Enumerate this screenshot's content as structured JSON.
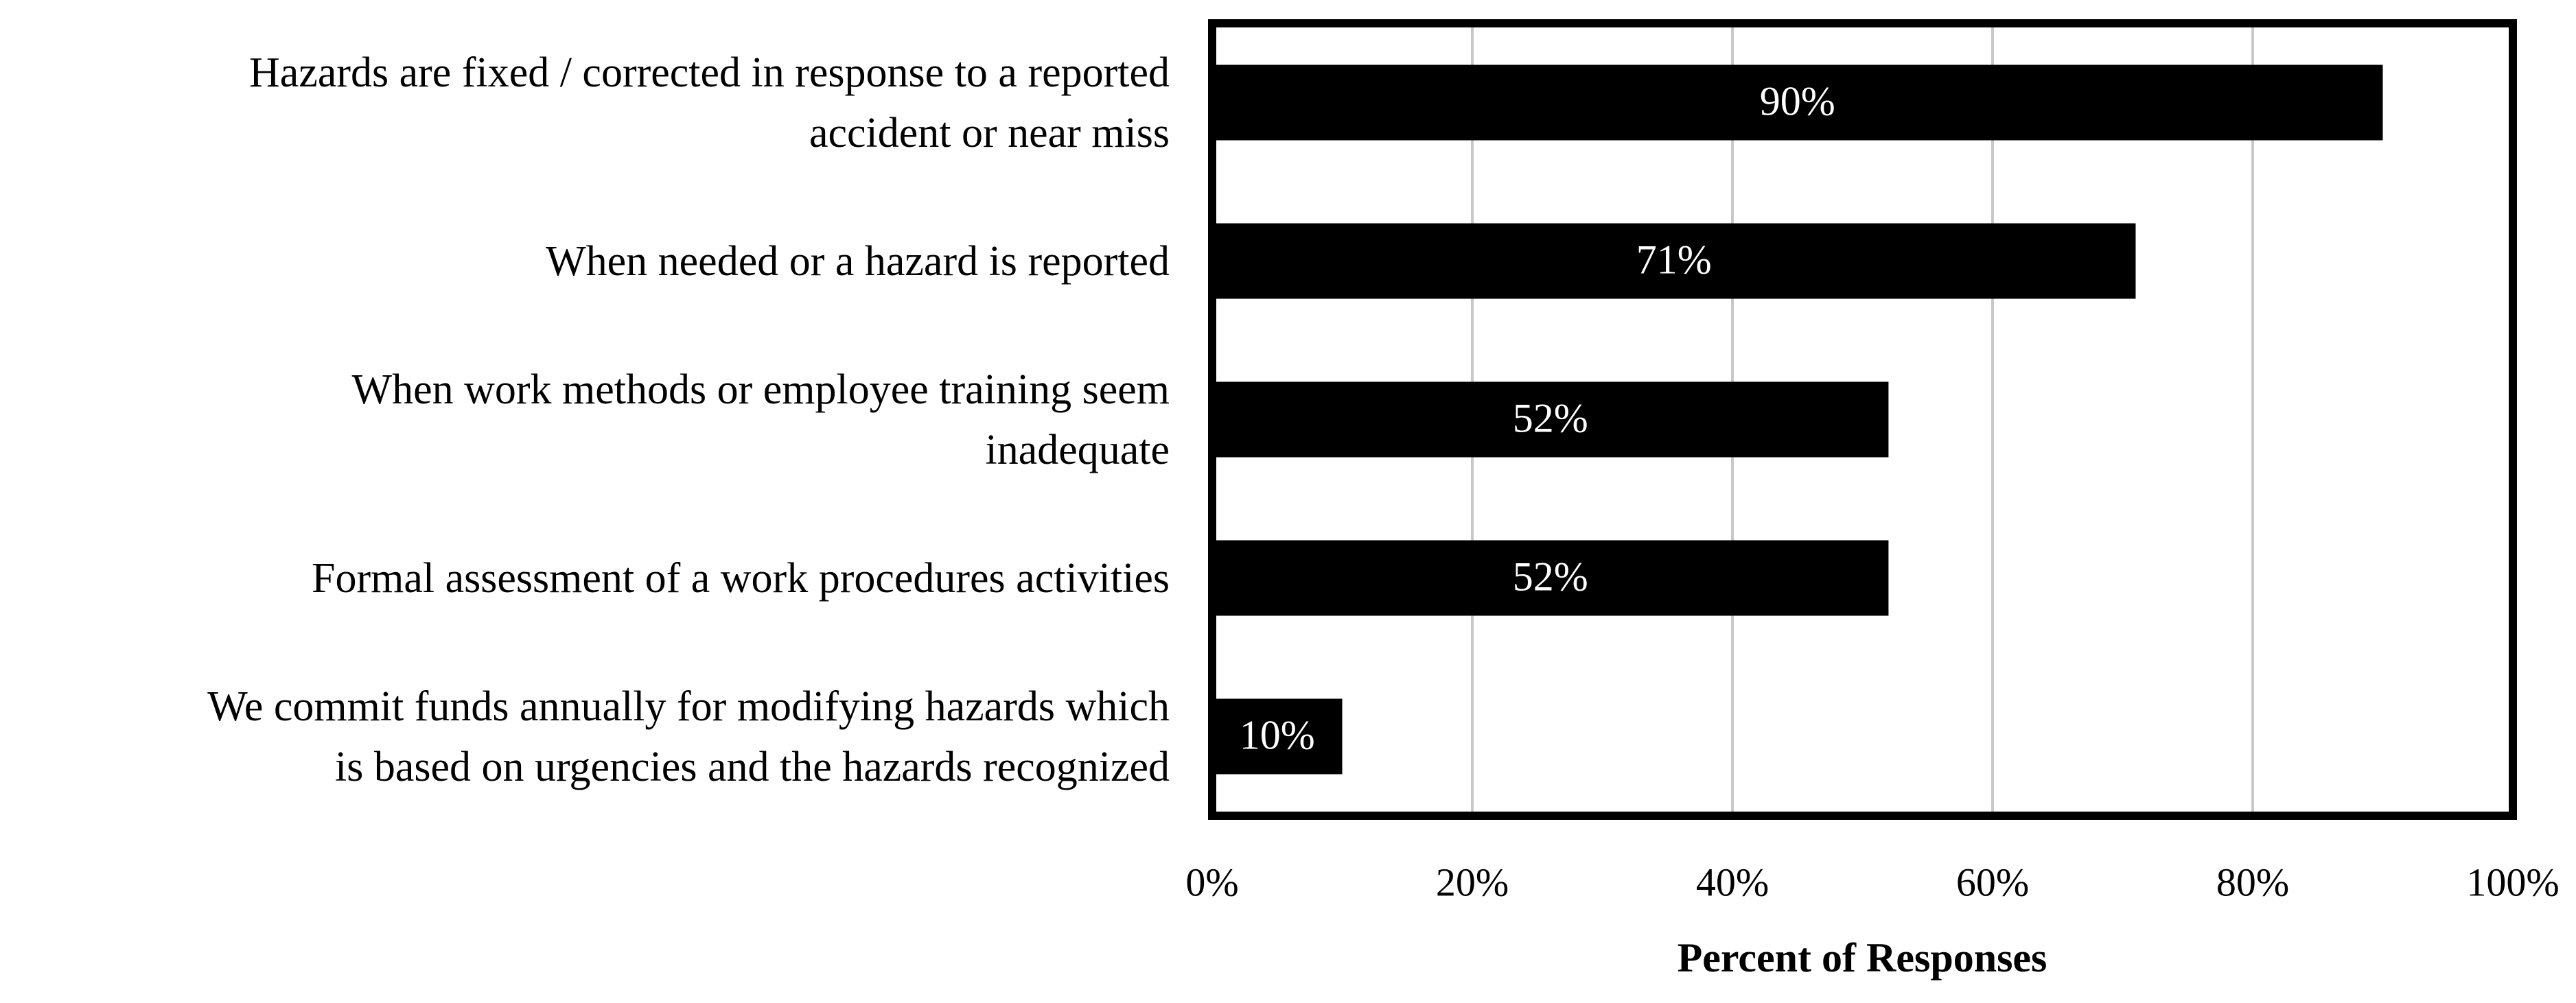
{
  "chart_data": {
    "type": "bar",
    "orientation": "horizontal",
    "categories": [
      "Hazards are fixed / corrected in response to a reported\naccident or near miss",
      "When needed or a hazard is reported",
      "When work methods or employee training seem\ninadequate",
      "Formal assessment of a work procedures activities",
      "We commit funds annually for modifying hazards which\nis based on urgencies and the hazards recognized"
    ],
    "values": [
      90,
      71,
      52,
      52,
      10
    ],
    "value_labels": [
      "90%",
      "71%",
      "52%",
      "52%",
      "10%"
    ],
    "color": "#000000",
    "x_label": "Percent of Responses",
    "xlim": [
      0,
      100
    ],
    "xticks": [
      {
        "value": 0,
        "label": "0%"
      },
      {
        "value": 20,
        "label": "20%"
      },
      {
        "value": 40,
        "label": "40%"
      },
      {
        "value": 60,
        "label": "60%"
      },
      {
        "value": 80,
        "label": "80%"
      },
      {
        "value": 100,
        "label": "100%"
      }
    ],
    "grid": true
  }
}
